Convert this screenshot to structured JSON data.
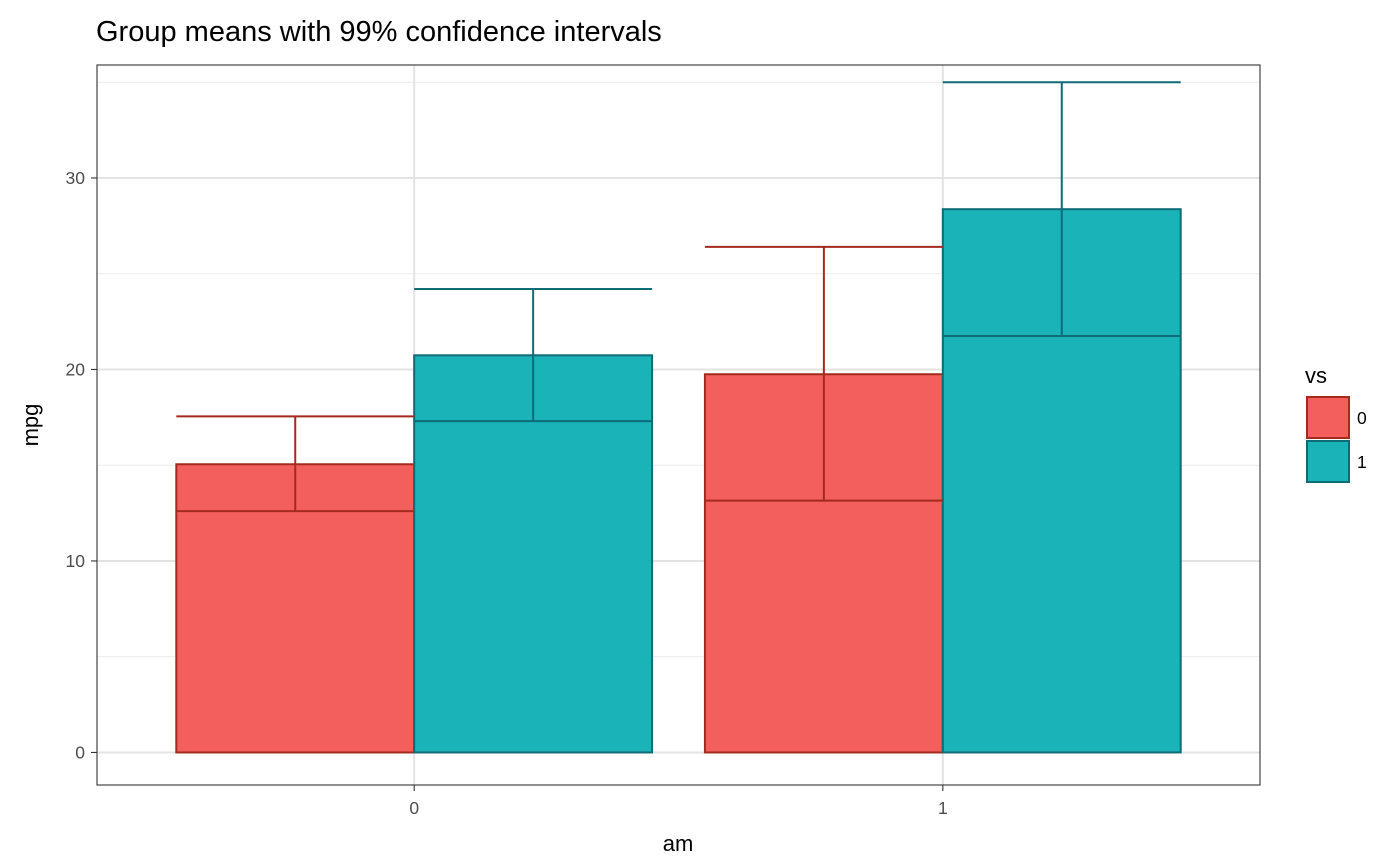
{
  "chart_data": {
    "type": "bar",
    "title": "Group means with 99% confidence intervals",
    "xlabel": "am",
    "ylabel": "mpg",
    "categories": [
      "0",
      "1"
    ],
    "ylim": [
      -1.7,
      35.9
    ],
    "y_ticks": [
      0,
      10,
      20,
      30
    ],
    "y_tick_labels": [
      "0",
      "10",
      "20",
      "30"
    ],
    "legend": {
      "title": "vs",
      "position": "right",
      "entries": [
        "0",
        "1"
      ]
    },
    "series": [
      {
        "name": "0",
        "fill": "#F25F5C",
        "stroke": "#A52A1E",
        "values": [
          15.05,
          19.75
        ],
        "ci_lower": [
          12.6,
          13.15
        ],
        "ci_upper": [
          17.55,
          26.4
        ]
      },
      {
        "name": "1",
        "fill": "#1AB3B8",
        "stroke": "#0E6B78",
        "values": [
          20.74,
          28.37
        ],
        "ci_lower": [
          17.3,
          21.75
        ],
        "ci_upper": [
          24.2,
          35.0
        ]
      }
    ],
    "grid": true
  }
}
